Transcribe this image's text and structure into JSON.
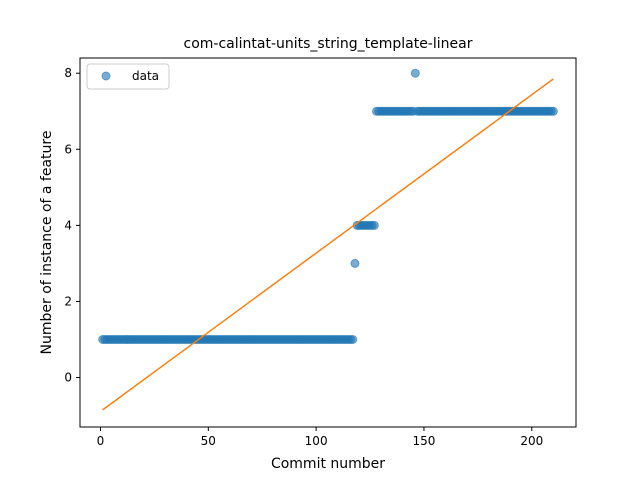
{
  "chart_data": {
    "type": "scatter",
    "title": "com-calintat-units_string_template-linear",
    "xlabel": "Commit number",
    "ylabel": "Number of instance of a feature",
    "xlim": [
      -9.5,
      220.5
    ],
    "ylim": [
      -1.3,
      8.4
    ],
    "xticks": [
      0,
      50,
      100,
      150,
      200
    ],
    "yticks": [
      0,
      2,
      4,
      6,
      8
    ],
    "legend": "top-left",
    "series": [
      {
        "name": "data",
        "kind": "scatter",
        "color": "#1f77b4",
        "runs": [
          {
            "x_start": 1,
            "x_end": 117,
            "y": 1
          },
          {
            "x_start": 118,
            "x_end": 118,
            "y": 3
          },
          {
            "x_start": 119,
            "x_end": 127,
            "y": 4
          },
          {
            "x_start": 128,
            "x_end": 145,
            "y": 7
          },
          {
            "x_start": 146,
            "x_end": 146,
            "y": 8
          },
          {
            "x_start": 147,
            "x_end": 210,
            "y": 7
          }
        ]
      },
      {
        "name": "",
        "kind": "line",
        "color": "#ff7f0e",
        "x": [
          1,
          210
        ],
        "y": [
          -0.85,
          7.85
        ]
      }
    ]
  }
}
